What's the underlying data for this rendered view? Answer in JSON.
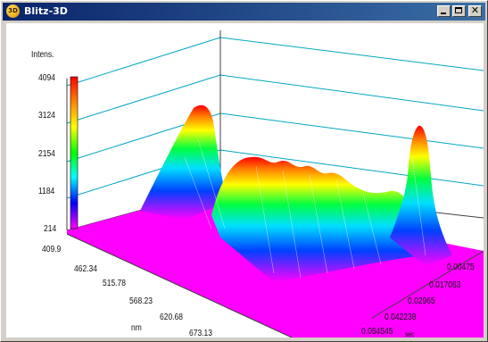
{
  "window": {
    "title": "Blitz-3D",
    "icon_text": "3D"
  },
  "titlebar_buttons": {
    "minimize": "minimize-icon",
    "maximize": "maximize-icon",
    "close": "close-icon",
    "close_glyph": "✕"
  },
  "plot": {
    "z_axis_title": "Intens.",
    "z_ticks": [
      "4094",
      "3124",
      "2154",
      "1184",
      "214"
    ],
    "x_ticks": [
      "409.9",
      "462.34",
      "515.78",
      "568.23",
      "620.68",
      "673.13"
    ],
    "x_unit": "nm",
    "y_ticks": [
      "0.00475",
      "0.017063",
      "0.02965",
      "0.042238",
      "0.054545"
    ],
    "y_unit": "sec",
    "colors": {
      "floor": "#ff00ff",
      "grid": "#00b0c8",
      "wall": "#ffffff"
    }
  }
}
